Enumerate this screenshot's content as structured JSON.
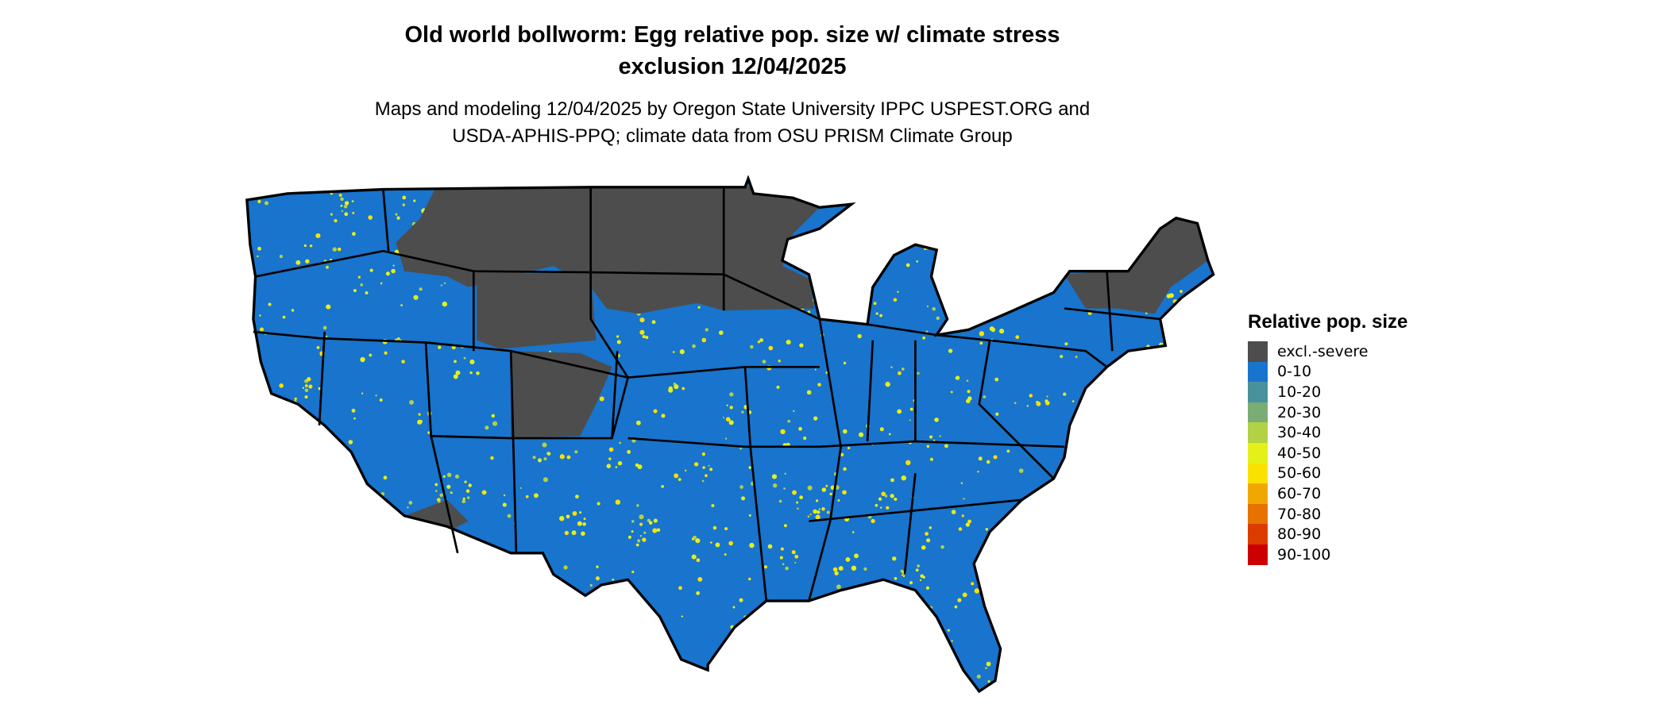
{
  "title_line1": "Old world bollworm: Egg relative pop. size w/ climate stress",
  "title_line2": "exclusion 12/04/2025",
  "subtitle_line1": "Maps and modeling 12/04/2025 by Oregon State University IPPC USPEST.ORG and",
  "subtitle_line2": "USDA-APHIS-PPQ; climate data from OSU PRISM Climate Group",
  "legend": {
    "title": "Relative pop. size",
    "items": [
      {
        "label": "excl.-severe",
        "color": "#4d4d4d"
      },
      {
        "label": "0-10",
        "color": "#1874cd"
      },
      {
        "label": "10-20",
        "color": "#4a919e"
      },
      {
        "label": "20-30",
        "color": "#7aad74"
      },
      {
        "label": "30-40",
        "color": "#b2d145"
      },
      {
        "label": "40-50",
        "color": "#e5f018"
      },
      {
        "label": "50-60",
        "color": "#fae100"
      },
      {
        "label": "60-70",
        "color": "#f0a800"
      },
      {
        "label": "70-80",
        "color": "#e67300"
      },
      {
        "label": "80-90",
        "color": "#dc3c00"
      },
      {
        "label": "90-100",
        "color": "#cd0000"
      }
    ]
  }
}
